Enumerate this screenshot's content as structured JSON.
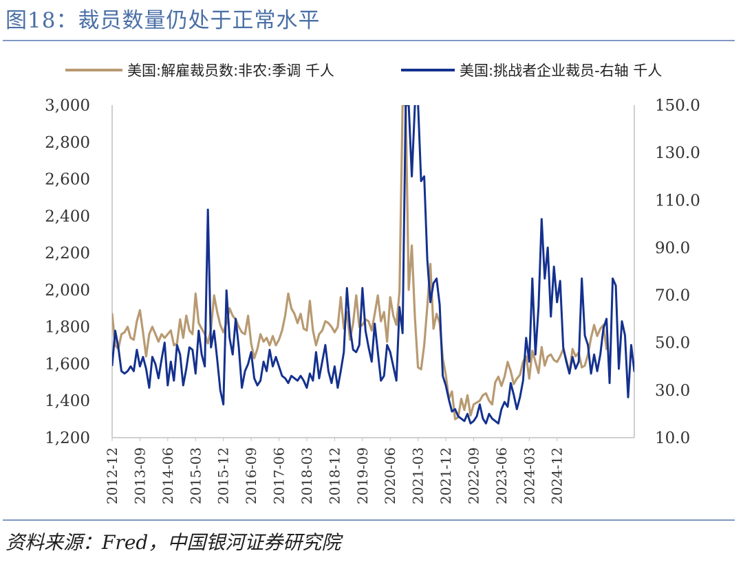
{
  "figure": {
    "title": "图18：裁员数量仍处于正常水平",
    "source": "资料来源：Fred，中国银河证券研究院"
  },
  "colors": {
    "left_series": "#b89a72",
    "right_series": "#14318e",
    "axis": "#bfbfbf",
    "rule": "#7f97c4"
  },
  "chart_data": {
    "type": "line",
    "title": "图18：裁员数量仍处于正常水平",
    "legend_position": "top",
    "grid": false,
    "x_ticks": [
      "2012-12",
      "2013-09",
      "2014-06",
      "2015-03",
      "2015-12",
      "2016-09",
      "2017-06",
      "2018-03",
      "2018-12",
      "2019-09",
      "2020-06",
      "2021-03",
      "2021-12",
      "2022-09",
      "2023-06",
      "2024-03",
      "2024-12"
    ],
    "y_left": {
      "min": 1200,
      "max": 3000,
      "ticks": [
        "1,200",
        "1,400",
        "1,600",
        "1,800",
        "2,000",
        "2,200",
        "2,400",
        "2,600",
        "2,800",
        "3,000"
      ]
    },
    "y_right": {
      "min": 10,
      "max": 150,
      "ticks": [
        "10.0",
        "30.0",
        "50.0",
        "70.0",
        "90.0",
        "110.0",
        "130.0",
        "150.0"
      ]
    },
    "x_start": "2012-12",
    "series": [
      {
        "name": "美国:解雇裁员数:非农:季调 千人",
        "axis": "left",
        "values": [
          1870,
          1700,
          1680,
          1760,
          1770,
          1800,
          1740,
          1730,
          1830,
          1890,
          1770,
          1640,
          1760,
          1800,
          1760,
          1720,
          1760,
          1740,
          1760,
          1780,
          1700,
          1710,
          1840,
          1740,
          1860,
          1780,
          1760,
          1980,
          1820,
          1790,
          1760,
          1710,
          1790,
          1970,
          1880,
          1810,
          1770,
          1820,
          1900,
          1860,
          1840,
          1800,
          1770,
          1760,
          1860,
          1710,
          1630,
          1680,
          1760,
          1720,
          1740,
          1700,
          1750,
          1700,
          1730,
          1780,
          1860,
          1980,
          1900,
          1870,
          1820,
          1870,
          1790,
          1780,
          1940,
          1780,
          1700,
          1760,
          1780,
          1830,
          1820,
          1800,
          1770,
          1800,
          1960,
          1790,
          1880,
          1730,
          1820,
          1970,
          1800,
          1810,
          1840,
          1830,
          1780,
          1870,
          1970,
          1830,
          1880,
          1720,
          1960,
          1860,
          1810,
          1990,
          3000,
          3000,
          2000,
          2240,
          1850,
          1580,
          1570,
          1700,
          1910,
          2140,
          1790,
          1870,
          1820,
          1630,
          1540,
          1410,
          1450,
          1300,
          1310,
          1410,
          1350,
          1430,
          1320,
          1380,
          1390,
          1400,
          1430,
          1440,
          1400,
          1380,
          1500,
          1530,
          1480,
          1530,
          1610,
          1560,
          1490,
          1520,
          1540,
          1610,
          1640,
          1520,
          1670,
          1610,
          1550,
          1690,
          1590,
          1640,
          1650,
          1620,
          1610,
          1640,
          1680,
          1620,
          1550,
          1680,
          1640,
          1660,
          1580,
          1590,
          1650,
          1740,
          1810,
          1750,
          1790,
          1810,
          1680
        ]
      },
      {
        "name": "美国:挑战者企业裁员-右轴 千人",
        "axis": "right",
        "values": [
          40.5,
          55.0,
          48.0,
          38.0,
          37.0,
          38.0,
          40.0,
          38.0,
          47.0,
          40.0,
          44.0,
          39.0,
          31.0,
          44.0,
          41.0,
          35.0,
          43.0,
          50.0,
          32.0,
          42.0,
          34.0,
          49.0,
          45.0,
          32.0,
          39.0,
          48.0,
          47.0,
          37.0,
          55.0,
          45.0,
          40.0,
          106.0,
          48.0,
          55.0,
          43.0,
          30.0,
          24.0,
          72.0,
          52.0,
          45.0,
          60.0,
          48.0,
          31.0,
          38.0,
          41.0,
          46.0,
          35.0,
          32.0,
          34.0,
          42.0,
          38.0,
          47.0,
          40.0,
          44.0,
          40.0,
          36.0,
          35.0,
          33.0,
          36.0,
          35.0,
          34.0,
          36.0,
          34.0,
          31.0,
          37.0,
          34.0,
          46.0,
          35.0,
          42.0,
          49.0,
          38.0,
          33.0,
          40.0,
          31.0,
          38.0,
          46.0,
          73.0,
          56.0,
          47.0,
          46.0,
          49.0,
          73.0,
          55.0,
          48.0,
          42.0,
          58.0,
          46.0,
          34.0,
          36.0,
          49.0,
          46.0,
          40.0,
          34.0,
          65.0,
          54.0,
          150.0,
          150.0,
          120.0,
          150.0,
          151.0,
          118.0,
          120.0,
          85.0,
          67.0,
          75.0,
          77.0,
          66.0,
          36.0,
          32.0,
          26.0,
          21.0,
          22.0,
          19.0,
          18.0,
          17.0,
          20.0,
          16.0,
          17.0,
          19.0,
          24.0,
          18.0,
          16.0,
          20.0,
          18.0,
          17.0,
          16.0,
          22.0,
          25.0,
          23.0,
          33.0,
          28.0,
          22.0,
          27.0,
          34.0,
          52.0,
          42.0,
          77.0,
          45.0,
          65.0,
          102.0,
          77.0,
          90.0,
          61.0,
          82.0,
          67.0,
          76.0,
          48.0,
          42.0,
          37.0,
          44.0,
          39.0,
          42.0,
          77.0,
          53.0,
          49.0,
          37.0,
          45.0,
          38.0,
          45.0,
          56.0,
          60.0,
          33.0,
          77.0,
          74.0,
          39.0,
          59.0,
          53.0,
          27.0,
          49.0,
          38.0
        ]
      }
    ]
  }
}
